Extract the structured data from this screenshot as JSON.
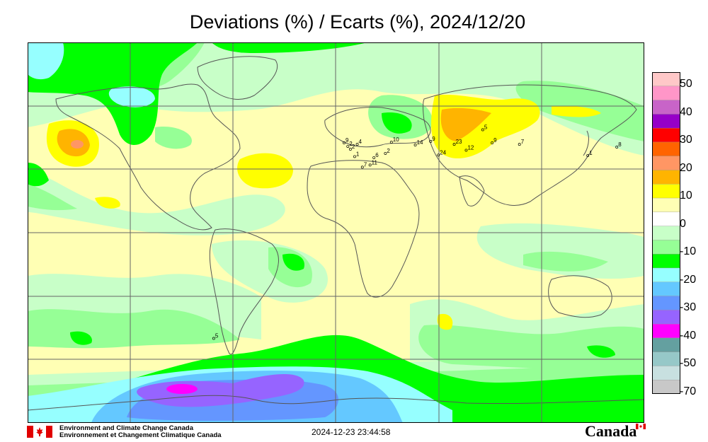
{
  "title": "Deviations (%) / Ecarts (%), 2024/12/20",
  "legend": {
    "labels": [
      "50",
      "40",
      "30",
      "20",
      "10",
      "0",
      "-10",
      "-20",
      "-30",
      "-40",
      "-50",
      "-70"
    ],
    "colors": [
      "#ffc8c8",
      "#ff96c8",
      "#c864c8",
      "#9600c8",
      "#ff0000",
      "#ff6400",
      "#ff9664",
      "#ffb400",
      "#ffff00",
      "#ffffb4",
      "#ffffff",
      "#c8ffc8",
      "#96ff96",
      "#00ff00",
      "#96ffff",
      "#64c8ff",
      "#6496ff",
      "#9664ff",
      "#ff00ff",
      "#64a0a0",
      "#96c8c8",
      "#c8e0e0",
      "#c8c8c8"
    ]
  },
  "stations": [
    {
      "label": "5",
      "lon": 86.5,
      "lat": 48.7
    },
    {
      "label": "9",
      "lon": 5.3,
      "lat": 42.5
    },
    {
      "label": "2",
      "lon": 7.5,
      "lat": 40.8
    },
    {
      "label": "4",
      "lon": 13,
      "lat": 41.8
    },
    {
      "label": "10",
      "lon": 33,
      "lat": 42.8
    },
    {
      "label": "14",
      "lon": 47,
      "lat": 41.5
    },
    {
      "label": "9",
      "lon": 56,
      "lat": 43.2
    },
    {
      "label": "23",
      "lon": 69.8,
      "lat": 41.8
    },
    {
      "label": "9",
      "lon": 92,
      "lat": 42.5
    },
    {
      "label": "7",
      "lon": 108,
      "lat": 41.8
    },
    {
      "label": "12",
      "lon": 76.8,
      "lat": 39
    },
    {
      "label": "2",
      "lon": 9,
      "lat": 39.5
    },
    {
      "label": "1",
      "lon": 11.5,
      "lat": 36
    },
    {
      "label": "2",
      "lon": 29.5,
      "lat": 37.5
    },
    {
      "label": "6",
      "lon": 22.8,
      "lat": 35.5
    },
    {
      "label": "24",
      "lon": 60.5,
      "lat": 36.7
    },
    {
      "label": "1",
      "lon": 148,
      "lat": 36.5
    },
    {
      "label": "8",
      "lon": 165,
      "lat": 40.5
    },
    {
      "label": "11",
      "lon": 20.5,
      "lat": 32
    },
    {
      "label": "7",
      "lon": 16,
      "lat": 31
    },
    {
      "label": "5",
      "lon": -71,
      "lat": -50
    }
  ],
  "footer": {
    "org_en": "Environment and Climate Change Canada",
    "org_fr": "Environnement et Changement Climatique Canada",
    "timestamp": "2024-12-23 23:44:58",
    "brand": "Canada"
  }
}
